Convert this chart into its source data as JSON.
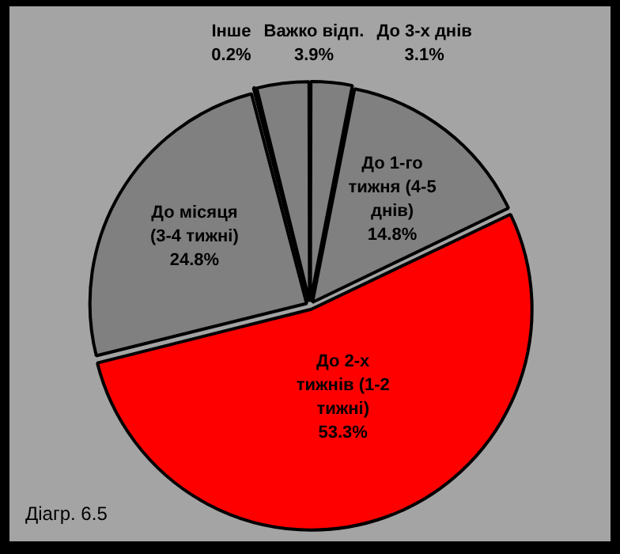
{
  "chart_data": {
    "type": "pie",
    "categories": [
      "До 3-х днів",
      "До 1-го тижня (4-5 днів)",
      "До 2-х тижнів (1-2 тижні)",
      "До місяця (3-4 тижні)",
      "Інше",
      "Важко відп."
    ],
    "values": [
      3.1,
      14.8,
      53.3,
      24.8,
      0.2,
      3.9
    ],
    "colors": [
      "#808080",
      "#808080",
      "#ff0000",
      "#808080",
      "#808080",
      "#808080"
    ],
    "value_labels": [
      "3.1%",
      "14.8%",
      "53.3%",
      "24.8%",
      "0.2%",
      "3.9%"
    ],
    "legend": false,
    "annotations": [
      "Діагр. 6.5"
    ]
  }
}
